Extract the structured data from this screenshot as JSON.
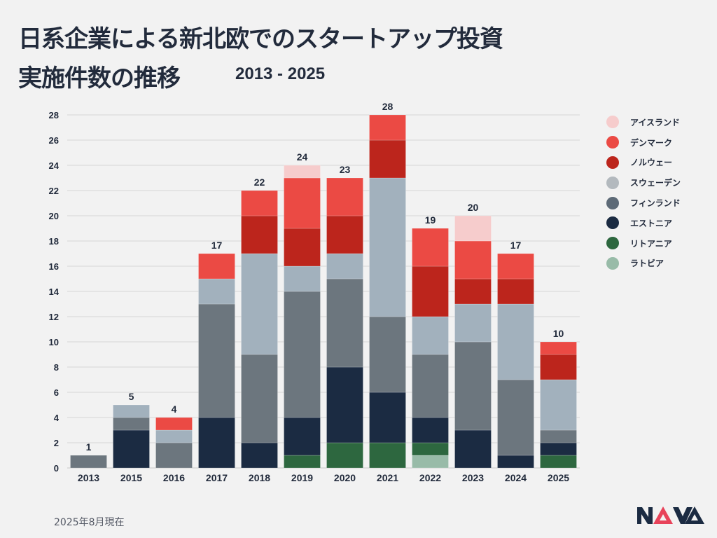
{
  "header": {
    "title_line1": "日系企業による新北欧でのスタートアップ投資",
    "title_line2": "実施件数の推移",
    "subtitle": "2013 - 2025"
  },
  "footer": {
    "note": "2025年8月現在",
    "logo_text": "NAVA",
    "logo_colors": {
      "dark": "#1b2b42",
      "accent": "#e8435a"
    }
  },
  "chart_data": {
    "type": "bar",
    "stacked": true,
    "title": "日系企業による新北欧でのスタートアップ投資 実施件数の推移 2013 - 2025",
    "xlabel": "",
    "ylabel": "",
    "ylim": [
      0,
      28
    ],
    "yticks": [
      0,
      2,
      4,
      6,
      8,
      10,
      12,
      14,
      16,
      18,
      20,
      22,
      24,
      26,
      28
    ],
    "grid": true,
    "legend_position": "right",
    "categories": [
      "2013",
      "2015",
      "2016",
      "2017",
      "2018",
      "2019",
      "2020",
      "2021",
      "2022",
      "2023",
      "2024",
      "2025"
    ],
    "totals": [
      1,
      5,
      4,
      17,
      22,
      24,
      23,
      28,
      19,
      20,
      17,
      10
    ],
    "series": [
      {
        "name": "ラトビア",
        "color": "#98bba8",
        "values": [
          0,
          0,
          0,
          0,
          0,
          0,
          0,
          0,
          1,
          0,
          0,
          0
        ]
      },
      {
        "name": "リトアニア",
        "color": "#2d673f",
        "values": [
          0,
          0,
          0,
          0,
          0,
          1,
          2,
          2,
          1,
          0,
          0,
          1
        ]
      },
      {
        "name": "エストニア",
        "color": "#1b2b42",
        "values": [
          0,
          3,
          0,
          4,
          2,
          3,
          6,
          4,
          2,
          3,
          1,
          1
        ]
      },
      {
        "name": "フィンランド",
        "color": "#6c767e",
        "values": [
          1,
          1,
          2,
          9,
          7,
          10,
          7,
          6,
          5,
          7,
          6,
          1
        ]
      },
      {
        "name": "スウェーデン",
        "color": "#a2b1bd",
        "values": [
          0,
          1,
          1,
          2,
          8,
          2,
          2,
          11,
          3,
          3,
          6,
          4
        ]
      },
      {
        "name": "ノルウェー",
        "color": "#bc251c",
        "values": [
          0,
          0,
          0,
          0,
          3,
          3,
          3,
          3,
          4,
          2,
          2,
          2
        ]
      },
      {
        "name": "デンマーク",
        "color": "#eb4a44",
        "values": [
          0,
          0,
          1,
          2,
          2,
          4,
          3,
          2,
          3,
          3,
          2,
          1
        ]
      },
      {
        "name": "アイスランド",
        "color": "#f6cccc",
        "values": [
          0,
          0,
          0,
          0,
          0,
          1,
          0,
          0,
          0,
          2,
          0,
          0
        ]
      }
    ],
    "legend": [
      {
        "name": "アイスランド",
        "color": "#f6cccc"
      },
      {
        "name": "デンマーク",
        "color": "#eb4a44"
      },
      {
        "name": "ノルウェー",
        "color": "#bc251c"
      },
      {
        "name": "スウェーデン",
        "color": "#b3b9be"
      },
      {
        "name": "フィンランド",
        "color": "#5d6a77"
      },
      {
        "name": "エストニア",
        "color": "#1b2b42"
      },
      {
        "name": "リトアニア",
        "color": "#2d673f"
      },
      {
        "name": "ラトビア",
        "color": "#98bba8"
      }
    ]
  }
}
